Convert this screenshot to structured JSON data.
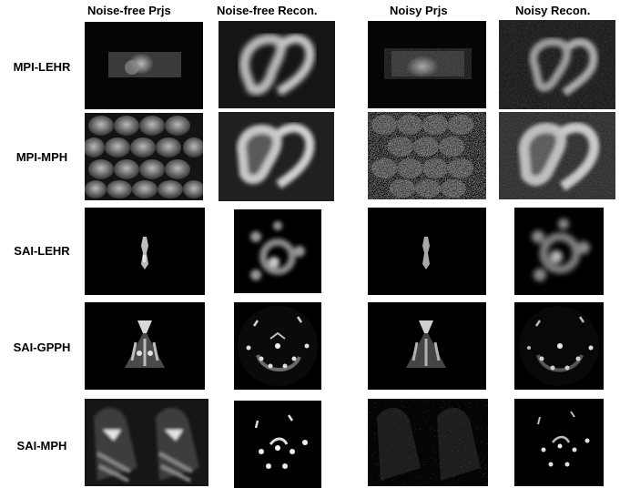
{
  "columns": [
    "Noise-free Prjs",
    "Noise-free Recon.",
    "Noisy Prjs",
    "Noisy Recon."
  ],
  "rows": [
    "MPI-LEHR",
    "MPI-MPH",
    "SAI-LEHR",
    "SAI-GPPH",
    "SAI-MPH"
  ]
}
